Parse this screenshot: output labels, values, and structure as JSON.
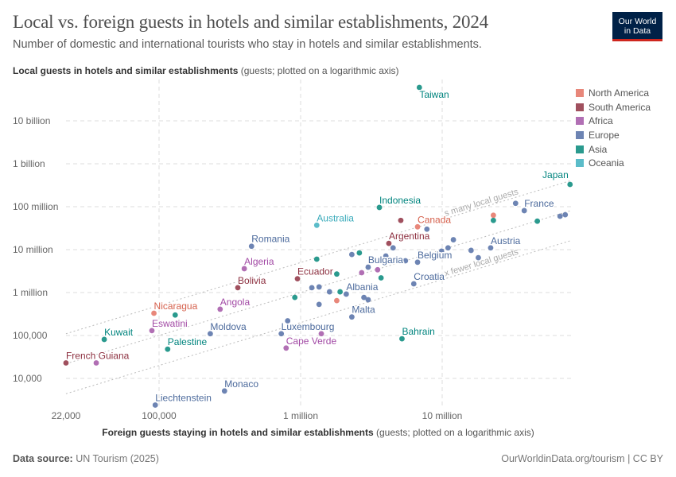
{
  "title": "Local vs. foreign guests in hotels and similar establishments, 2024",
  "subtitle": "Number of domestic and international tourists who stay in hotels and similar establishments.",
  "logo": {
    "line1": "Our World",
    "line2": "in Data"
  },
  "footer": {
    "source_label": "Data source:",
    "source": "UN Tourism (2025)",
    "credit": "OurWorldinData.org/tourism | CC BY"
  },
  "chart_data": {
    "type": "scatter",
    "title": "Local vs. foreign guests in hotels and similar establishments, 2024",
    "xlabel": "Foreign guests staying in hotels and similar establishments",
    "xlabel_note": "(guests; plotted on a logarithmic axis)",
    "ylabel": "Local guests in hotels and similar establishments",
    "ylabel_note": "(guests; plotted on a logarithmic axis)",
    "xscale": "log",
    "yscale": "log",
    "xlim": [
      22000,
      82000000
    ],
    "ylim": [
      2300,
      80000000000
    ],
    "xticks": [
      {
        "v": 22000,
        "label": "22,000"
      },
      {
        "v": 100000,
        "label": "100,000"
      },
      {
        "v": 1000000,
        "label": "1 million"
      },
      {
        "v": 10000000,
        "label": "10 million"
      }
    ],
    "yticks": [
      {
        "v": 10000,
        "label": "10,000"
      },
      {
        "v": 100000,
        "label": "100,000"
      },
      {
        "v": 1000000,
        "label": "1 million"
      },
      {
        "v": 10000000,
        "label": "10 million"
      },
      {
        "v": 100000000,
        "label": "100 million"
      },
      {
        "v": 1000000000,
        "label": "1 billion"
      },
      {
        "v": 10000000000,
        "label": "10 billion"
      }
    ],
    "grid": true,
    "legend_position": "right",
    "regions": [
      {
        "name": "North America",
        "color": "#e8877a",
        "text": "#d5604c"
      },
      {
        "name": "South America",
        "color": "#a0505e",
        "text": "#8c2f3f"
      },
      {
        "name": "Africa",
        "color": "#b16fb4",
        "text": "#a24aa5"
      },
      {
        "name": "Europe",
        "color": "#6d84b3",
        "text": "#4c6a9c"
      },
      {
        "name": "Asia",
        "color": "#2a9a8e",
        "text": "#00847e"
      },
      {
        "name": "Oceania",
        "color": "#5bbcc9",
        "text": "#38aaba"
      }
    ],
    "reference_lines": [
      {
        "factor": 5,
        "label": "s many local guests"
      },
      {
        "factor": 1,
        "label": ""
      },
      {
        "factor": 0.2,
        "label": "x fewer local guests"
      }
    ],
    "points": [
      {
        "label": "Taiwan",
        "region": "Asia",
        "x": 6900000,
        "y": 60000000000
      },
      {
        "label": "Japan",
        "region": "Asia",
        "x": 80000000,
        "y": 330000000
      },
      {
        "label": "France",
        "region": "Europe",
        "x": 38000000,
        "y": 81000000
      },
      {
        "label": "",
        "region": "Europe",
        "x": 33000000,
        "y": 120000000
      },
      {
        "label": "Indonesia",
        "region": "Asia",
        "x": 3600000,
        "y": 96000000
      },
      {
        "label": "Canada",
        "region": "North America",
        "x": 6700000,
        "y": 34000000
      },
      {
        "label": "",
        "region": "South America",
        "x": 5100000,
        "y": 48000000
      },
      {
        "label": "Australia",
        "region": "Oceania",
        "x": 1300000,
        "y": 37000000
      },
      {
        "label": "Argentina",
        "region": "South America",
        "x": 4200000,
        "y": 14000000
      },
      {
        "label": "",
        "region": "Europe",
        "x": 7800000,
        "y": 30000000
      },
      {
        "label": "",
        "region": "Europe",
        "x": 4500000,
        "y": 11000000
      },
      {
        "label": "Romania",
        "region": "Europe",
        "x": 450000,
        "y": 12000000
      },
      {
        "label": "Algeria",
        "region": "Africa",
        "x": 400000,
        "y": 3600000
      },
      {
        "label": "Bolivia",
        "region": "South America",
        "x": 360000,
        "y": 1300000
      },
      {
        "label": "Nicaragua",
        "region": "North America",
        "x": 92000,
        "y": 330000
      },
      {
        "label": "",
        "region": "Asia",
        "x": 130000,
        "y": 300000
      },
      {
        "label": "Angola",
        "region": "Africa",
        "x": 270000,
        "y": 410000
      },
      {
        "label": "Eswatini",
        "region": "Africa",
        "x": 89000,
        "y": 130000
      },
      {
        "label": "Moldova",
        "region": "Europe",
        "x": 230000,
        "y": 110000
      },
      {
        "label": "Kuwait",
        "region": "Asia",
        "x": 41000,
        "y": 81000
      },
      {
        "label": "Palestine",
        "region": "Asia",
        "x": 115000,
        "y": 48000
      },
      {
        "label": "French Guiana",
        "region": "South America",
        "x": 22000,
        "y": 23000
      },
      {
        "label": "",
        "region": "Africa",
        "x": 36000,
        "y": 23000
      },
      {
        "label": "Monaco",
        "region": "Europe",
        "x": 290000,
        "y": 5100
      },
      {
        "label": "Liechtenstein",
        "region": "Europe",
        "x": 94000,
        "y": 2400
      },
      {
        "label": "",
        "region": "Asia",
        "x": 1300000,
        "y": 6000000
      },
      {
        "label": "Ecuador",
        "region": "South America",
        "x": 950000,
        "y": 2100000
      },
      {
        "label": "",
        "region": "Europe",
        "x": 1200000,
        "y": 1300000
      },
      {
        "label": "",
        "region": "Europe",
        "x": 1350000,
        "y": 1350000
      },
      {
        "label": "",
        "region": "Europe",
        "x": 1600000,
        "y": 1040000
      },
      {
        "label": "",
        "region": "Asia",
        "x": 910000,
        "y": 770000
      },
      {
        "label": "",
        "region": "Europe",
        "x": 1350000,
        "y": 530000
      },
      {
        "label": "",
        "region": "North America",
        "x": 1800000,
        "y": 650000
      },
      {
        "label": "",
        "region": "Asia",
        "x": 1800000,
        "y": 2700000
      },
      {
        "label": "",
        "region": "Asia",
        "x": 1900000,
        "y": 1040000
      },
      {
        "label": "Albania",
        "region": "Europe",
        "x": 2100000,
        "y": 920000
      },
      {
        "label": "",
        "region": "Europe",
        "x": 810000,
        "y": 220000
      },
      {
        "label": "Luxembourg",
        "region": "Europe",
        "x": 730000,
        "y": 110000
      },
      {
        "label": "",
        "region": "Africa",
        "x": 1400000,
        "y": 110000
      },
      {
        "label": "Cape Verde",
        "region": "Africa",
        "x": 790000,
        "y": 51000
      },
      {
        "label": "",
        "region": "Europe",
        "x": 2300000,
        "y": 7700000
      },
      {
        "label": "",
        "region": "Asia",
        "x": 2600000,
        "y": 8400000
      },
      {
        "label": "Bulgaria",
        "region": "Europe",
        "x": 3000000,
        "y": 3900000
      },
      {
        "label": "",
        "region": "Africa",
        "x": 2700000,
        "y": 2900000
      },
      {
        "label": "",
        "region": "Africa",
        "x": 3500000,
        "y": 3400000
      },
      {
        "label": "",
        "region": "Asia",
        "x": 3700000,
        "y": 2200000
      },
      {
        "label": "",
        "region": "Europe",
        "x": 4000000,
        "y": 7100000
      },
      {
        "label": "",
        "region": "Europe",
        "x": 2800000,
        "y": 770000
      },
      {
        "label": "",
        "region": "Europe",
        "x": 3000000,
        "y": 680000
      },
      {
        "label": "Malta",
        "region": "Europe",
        "x": 2300000,
        "y": 270000
      },
      {
        "label": "Bahrain",
        "region": "Asia",
        "x": 5200000,
        "y": 84000
      },
      {
        "label": "Croatia",
        "region": "Europe",
        "x": 6300000,
        "y": 1600000
      },
      {
        "label": "Belgium",
        "region": "Europe",
        "x": 6700000,
        "y": 5100000
      },
      {
        "label": "",
        "region": "Europe",
        "x": 5500000,
        "y": 5500000
      },
      {
        "label": "",
        "region": "Europe",
        "x": 12000000,
        "y": 17000000
      },
      {
        "label": "",
        "region": "Europe",
        "x": 11000000,
        "y": 11000000
      },
      {
        "label": "",
        "region": "Europe",
        "x": 9900000,
        "y": 9200000
      },
      {
        "label": "",
        "region": "Europe",
        "x": 16000000,
        "y": 9600000
      },
      {
        "label": "",
        "region": "Europe",
        "x": 18000000,
        "y": 6500000
      },
      {
        "label": "Austria",
        "region": "Europe",
        "x": 22000000,
        "y": 11000000
      },
      {
        "label": "",
        "region": "North America",
        "x": 23000000,
        "y": 63000000
      },
      {
        "label": "",
        "region": "Asia",
        "x": 23000000,
        "y": 48000000
      },
      {
        "label": "",
        "region": "Asia",
        "x": 47000000,
        "y": 46000000
      },
      {
        "label": "",
        "region": "Europe",
        "x": 68000000,
        "y": 60000000
      },
      {
        "label": "",
        "region": "Europe",
        "x": 74000000,
        "y": 65000000
      }
    ]
  }
}
